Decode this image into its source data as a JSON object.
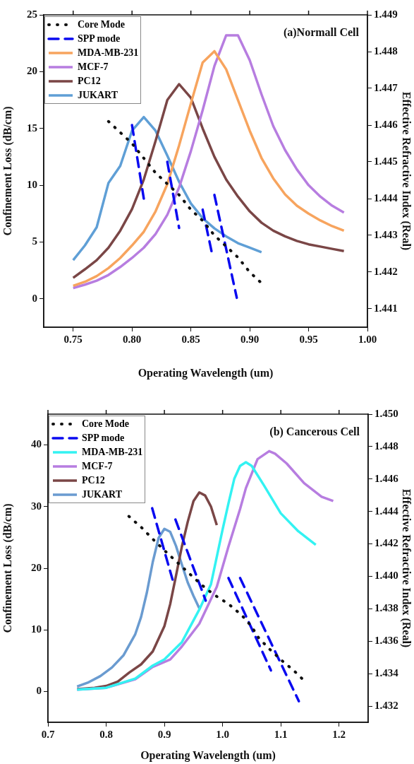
{
  "chart_data": [
    {
      "type": "line",
      "xlabel": "Operating Wavelength (um)",
      "ylabel": "Confinement Loss (dB/cm)",
      "y2label": "Effective Refractive Index (Real)",
      "annotations": [
        "(a)Normall Cell"
      ],
      "legend": "top left",
      "grid": false,
      "xlim": [
        0.725,
        1.0
      ],
      "xticks": [
        {
          "value": 0.75,
          "label": "0.75"
        },
        {
          "value": 0.8,
          "label": "0.80"
        },
        {
          "value": 0.85,
          "label": "0.85"
        },
        {
          "value": 0.9,
          "label": "0.90"
        },
        {
          "value": 0.95,
          "label": "0.95"
        },
        {
          "value": 1.0,
          "label": "1.00"
        }
      ],
      "ylim": [
        -2.5,
        25
      ],
      "yticks": [
        0,
        5,
        10,
        15,
        20,
        25
      ],
      "y2lim": [
        1.4405,
        1.449
      ],
      "y2ticks": [
        1.441,
        1.442,
        1.443,
        1.444,
        1.445,
        1.446,
        1.447,
        1.448,
        1.449
      ],
      "series": [
        {
          "name": "Core Mode",
          "color": "#111111",
          "line_style": "dotted",
          "axis": "y2",
          "x": [
            0.78,
            0.79,
            0.8,
            0.81,
            0.82,
            0.83,
            0.84,
            0.85,
            0.86,
            0.87,
            0.88,
            0.89,
            0.9,
            0.91
          ],
          "values": [
            1.4461,
            1.4458,
            1.4455,
            1.4451,
            1.4447,
            1.4444,
            1.4441,
            1.4437,
            1.4434,
            1.443,
            1.4427,
            1.4424,
            1.442,
            1.4417
          ]
        },
        {
          "name": "SPP mode",
          "color": "#0a0af0",
          "line_style": "dashed",
          "axis": "y2",
          "x": [
            0.8,
            0.81
          ],
          "values": [
            1.446,
            1.444
          ]
        },
        {
          "color": "#0a0af0",
          "line_style": "dashed",
          "axis": "y2",
          "x": [
            0.83,
            0.84
          ],
          "values": [
            1.445,
            1.4432
          ]
        },
        {
          "color": "#0a0af0",
          "line_style": "dashed",
          "axis": "y2",
          "x": [
            0.86,
            0.868
          ],
          "values": [
            1.4437,
            1.4425
          ]
        },
        {
          "color": "#0a0af0",
          "line_style": "dashed",
          "axis": "y2",
          "x": [
            0.87,
            0.889
          ],
          "values": [
            1.4441,
            1.4413
          ]
        },
        {
          "name": "MDA-MB-231",
          "color": "#f7a45e",
          "line_style": "solid",
          "x": [
            0.75,
            0.76,
            0.77,
            0.78,
            0.79,
            0.8,
            0.81,
            0.82,
            0.83,
            0.84,
            0.85,
            0.86,
            0.87,
            0.88,
            0.89,
            0.9,
            0.91,
            0.92,
            0.93,
            0.94,
            0.95,
            0.96,
            0.97,
            0.98
          ],
          "values": [
            1.15,
            1.5,
            2.0,
            2.7,
            3.6,
            4.7,
            5.9,
            7.7,
            10.1,
            13.5,
            17.2,
            20.8,
            21.8,
            20.2,
            17.5,
            14.8,
            12.4,
            10.6,
            9.2,
            8.2,
            7.5,
            6.9,
            6.4,
            6.0
          ]
        },
        {
          "name": "MCF-7",
          "color": "#b77de0",
          "line_style": "solid",
          "x": [
            0.75,
            0.76,
            0.77,
            0.78,
            0.79,
            0.8,
            0.81,
            0.82,
            0.83,
            0.84,
            0.85,
            0.86,
            0.87,
            0.88,
            0.89,
            0.9,
            0.91,
            0.92,
            0.93,
            0.94,
            0.95,
            0.96,
            0.97,
            0.98
          ],
          "values": [
            0.95,
            1.25,
            1.6,
            2.1,
            2.8,
            3.6,
            4.5,
            5.7,
            7.4,
            9.8,
            13.0,
            16.6,
            20.5,
            23.2,
            23.2,
            21.0,
            18.0,
            15.2,
            13.1,
            11.4,
            10.0,
            9.0,
            8.2,
            7.6
          ]
        },
        {
          "name": "PC12",
          "color": "#7a4646",
          "line_style": "solid",
          "x": [
            0.75,
            0.76,
            0.77,
            0.78,
            0.79,
            0.8,
            0.81,
            0.82,
            0.83,
            0.84,
            0.85,
            0.86,
            0.87,
            0.88,
            0.89,
            0.9,
            0.91,
            0.92,
            0.93,
            0.94,
            0.95,
            0.96,
            0.97,
            0.98
          ],
          "values": [
            1.85,
            2.6,
            3.4,
            4.5,
            6.0,
            7.9,
            10.5,
            13.9,
            17.5,
            18.9,
            17.7,
            15.0,
            12.5,
            10.5,
            9.0,
            7.7,
            6.7,
            6.0,
            5.5,
            5.1,
            4.8,
            4.6,
            4.4,
            4.2
          ]
        },
        {
          "name": "JUKART",
          "color": "#5f9fd6",
          "line_style": "solid",
          "x": [
            0.75,
            0.76,
            0.77,
            0.78,
            0.79,
            0.8,
            0.81,
            0.82,
            0.83,
            0.84,
            0.85,
            0.86,
            0.87,
            0.88,
            0.89,
            0.9,
            0.91
          ],
          "values": [
            3.4,
            4.7,
            6.3,
            10.2,
            11.7,
            14.8,
            16.0,
            14.8,
            12.6,
            10.3,
            8.4,
            7.1,
            6.2,
            5.5,
            4.9,
            4.5,
            4.1
          ]
        }
      ]
    },
    {
      "type": "line",
      "xlabel": "Operating Wavelength (um)",
      "ylabel": "Confinement Loss (dB/cm)",
      "y2label": "Effective Refractive Index (Real)",
      "annotations": [
        "(b) Cancerous Cell"
      ],
      "legend": "top left",
      "grid": false,
      "xlim": [
        0.7,
        1.25
      ],
      "xticks": [
        {
          "value": 0.7,
          "label": "0.7"
        },
        {
          "value": 0.8,
          "label": "0.8"
        },
        {
          "value": 0.9,
          "label": "0.9"
        },
        {
          "value": 1.0,
          "label": "1.0"
        },
        {
          "value": 1.1,
          "label": "1.1"
        },
        {
          "value": 1.2,
          "label": "1.2"
        }
      ],
      "ylim": [
        -5,
        45
      ],
      "yticks": [
        0,
        10,
        20,
        30,
        40
      ],
      "y2lim": [
        1.431,
        1.45
      ],
      "y2ticks": [
        1.432,
        1.434,
        1.436,
        1.438,
        {
          "value": 1.44,
          "label": "1.440"
        },
        1.442,
        1.444,
        1.446,
        1.448,
        {
          "value": 1.45,
          "label": "1.450"
        }
      ],
      "series": [
        {
          "name": "Core Mode",
          "color": "#111111",
          "line_style": "dotted",
          "axis": "y2",
          "x": [
            0.839,
            0.861,
            0.88,
            0.9,
            0.921,
            0.942,
            0.963,
            0.984,
            1.01,
            1.033,
            1.05,
            1.062,
            1.081,
            1.102,
            1.122,
            1.142
          ],
          "values": [
            1.4437,
            1.443,
            1.4423,
            1.4416,
            1.4409,
            1.4402,
            1.4395,
            1.4389,
            1.4383,
            1.4376,
            1.4369,
            1.4362,
            1.4355,
            1.4348,
            1.4342,
            1.4335
          ]
        },
        {
          "name": "SPP mode",
          "color": "#0a0af0",
          "line_style": "dashed",
          "axis": "y2",
          "x": [
            0.879,
            0.914
          ],
          "values": [
            1.4442,
            1.4398
          ]
        },
        {
          "color": "#0a0af0",
          "line_style": "dashed",
          "axis": "y2",
          "x": [
            0.919,
            0.971
          ],
          "values": [
            1.4435,
            1.4385
          ]
        },
        {
          "color": "#0a0af0",
          "line_style": "dashed",
          "axis": "y2",
          "x": [
            1.01,
            1.083
          ],
          "values": [
            1.4399,
            1.4342
          ]
        },
        {
          "color": "#0a0af0",
          "line_style": "dashed",
          "axis": "y2",
          "x": [
            1.03,
            1.131
          ],
          "values": [
            1.4399,
            1.4323
          ]
        },
        {
          "name": "MDA-MB-231",
          "color": "#33f2f2",
          "line_style": "solid",
          "x": [
            0.75,
            0.8,
            0.85,
            0.88,
            0.9,
            0.93,
            0.96,
            0.98,
            1.0,
            1.01,
            1.02,
            1.03,
            1.04,
            1.05,
            1.07,
            1.1,
            1.13,
            1.16
          ],
          "values": [
            0.3,
            0.6,
            2.1,
            4.2,
            5.2,
            8.0,
            13.3,
            17.4,
            26.3,
            30.5,
            34.5,
            36.6,
            37.2,
            36.6,
            33.6,
            28.9,
            26.0,
            23.8
          ]
        },
        {
          "name": "MCF-7",
          "color": "#b77de0",
          "line_style": "solid",
          "x": [
            0.75,
            0.8,
            0.85,
            0.88,
            0.9,
            0.91,
            0.93,
            0.96,
            0.99,
            1.01,
            1.03,
            1.04,
            1.06,
            1.08,
            1.09,
            1.11,
            1.14,
            1.17,
            1.19
          ],
          "values": [
            0.3,
            0.6,
            2.0,
            4.0,
            4.8,
            5.2,
            7.3,
            11.0,
            17.0,
            23.5,
            29.6,
            33.0,
            37.7,
            39.0,
            38.6,
            37.0,
            33.8,
            31.6,
            30.9
          ]
        },
        {
          "name": "PC12",
          "color": "#7a4646",
          "line_style": "solid",
          "x": [
            0.75,
            0.78,
            0.8,
            0.82,
            0.84,
            0.86,
            0.88,
            0.9,
            0.91,
            0.92,
            0.93,
            0.94,
            0.95,
            0.96,
            0.97,
            0.98,
            0.99
          ],
          "values": [
            0.4,
            0.6,
            0.9,
            1.6,
            3.1,
            4.4,
            6.5,
            10.6,
            14.2,
            18.8,
            23.5,
            27.5,
            30.9,
            32.3,
            31.8,
            30.0,
            27.0
          ]
        },
        {
          "name": "JUKART",
          "color": "#6a9bd0",
          "line_style": "solid",
          "x": [
            0.75,
            0.77,
            0.79,
            0.81,
            0.83,
            0.85,
            0.86,
            0.87,
            0.88,
            0.89,
            0.9,
            0.91,
            0.92,
            0.93,
            0.94,
            0.95,
            0.96
          ],
          "values": [
            0.8,
            1.5,
            2.5,
            3.9,
            5.9,
            9.3,
            12.1,
            16.1,
            21.0,
            24.9,
            26.4,
            25.9,
            23.6,
            20.6,
            17.7,
            15.5,
            13.5
          ]
        }
      ]
    }
  ]
}
